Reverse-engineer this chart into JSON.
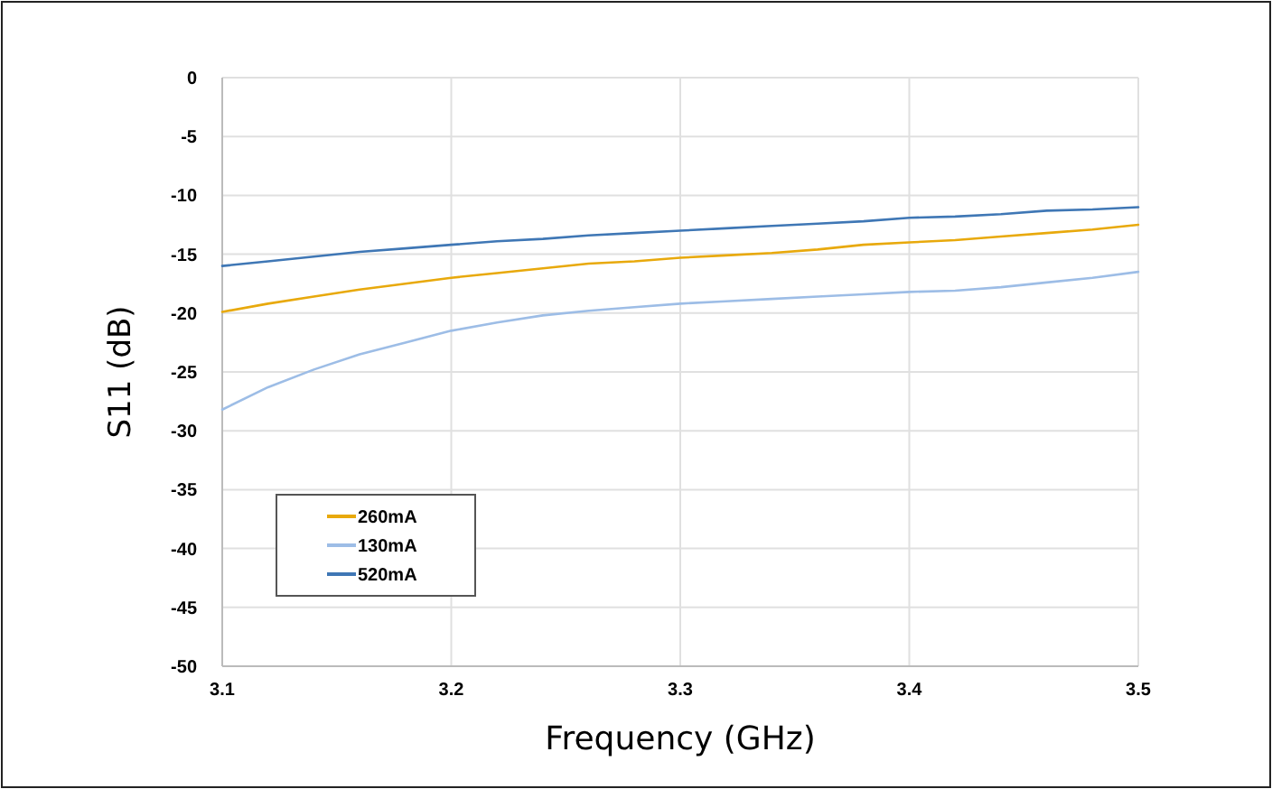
{
  "chart_data": {
    "type": "line",
    "xlabel": "Frequency (GHz)",
    "ylabel": "S11 (dB)",
    "x": [
      3.1,
      3.12,
      3.14,
      3.16,
      3.18,
      3.2,
      3.22,
      3.24,
      3.26,
      3.28,
      3.3,
      3.32,
      3.34,
      3.36,
      3.38,
      3.4,
      3.42,
      3.44,
      3.46,
      3.48,
      3.5
    ],
    "series": [
      {
        "name": "260mA",
        "color": "#e8a90c",
        "values": [
          -19.9,
          -19.2,
          -18.6,
          -18.0,
          -17.5,
          -17.0,
          -16.6,
          -16.2,
          -15.8,
          -15.6,
          -15.3,
          -15.1,
          -14.9,
          -14.6,
          -14.2,
          -14.0,
          -13.8,
          -13.5,
          -13.2,
          -12.9,
          -12.5
        ]
      },
      {
        "name": "130mA",
        "color": "#9dbde6",
        "values": [
          -28.2,
          -26.3,
          -24.8,
          -23.5,
          -22.5,
          -21.5,
          -20.8,
          -20.2,
          -19.8,
          -19.5,
          -19.2,
          -19.0,
          -18.8,
          -18.6,
          -18.4,
          -18.2,
          -18.1,
          -17.8,
          -17.4,
          -17.0,
          -16.5
        ]
      },
      {
        "name": "520mA",
        "color": "#3f77b5",
        "values": [
          -16.0,
          -15.6,
          -15.2,
          -14.8,
          -14.5,
          -14.2,
          -13.9,
          -13.7,
          -13.4,
          -13.2,
          -13.0,
          -12.8,
          -12.6,
          -12.4,
          -12.2,
          -11.9,
          -11.8,
          -11.6,
          -11.3,
          -11.2,
          -11.0
        ]
      }
    ],
    "xlim": [
      3.1,
      3.5
    ],
    "xticks": [
      3.1,
      3.2,
      3.3,
      3.4,
      3.5
    ],
    "ylim": [
      -50,
      0
    ],
    "yticks": [
      -50,
      -45,
      -40,
      -35,
      -30,
      -25,
      -20,
      -15,
      -10,
      -5,
      0
    ],
    "grid": true,
    "legend": "bottom left",
    "marker": "none",
    "line_style": "solid"
  }
}
